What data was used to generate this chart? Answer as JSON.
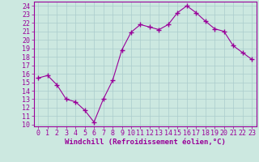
{
  "x": [
    0,
    1,
    2,
    3,
    4,
    5,
    6,
    7,
    8,
    9,
    10,
    11,
    12,
    13,
    14,
    15,
    16,
    17,
    18,
    19,
    20,
    21,
    22,
    23
  ],
  "y": [
    15.5,
    15.8,
    14.7,
    13.0,
    12.7,
    11.7,
    10.3,
    13.0,
    15.2,
    18.8,
    20.9,
    21.8,
    21.5,
    21.2,
    21.8,
    23.2,
    24.0,
    23.2,
    22.2,
    21.3,
    21.0,
    19.3,
    18.5,
    17.7
  ],
  "line_color": "#990099",
  "marker": "+",
  "marker_size": 4,
  "bg_color": "#cce8e0",
  "grid_color": "#aacccc",
  "xlabel": "Windchill (Refroidissement éolien,°C)",
  "ylabel_ticks": [
    10,
    11,
    12,
    13,
    14,
    15,
    16,
    17,
    18,
    19,
    20,
    21,
    22,
    23,
    24
  ],
  "xtick_labels": [
    "0",
    "1",
    "2",
    "3",
    "4",
    "5",
    "6",
    "7",
    "8",
    "9",
    "10",
    "11",
    "12",
    "13",
    "14",
    "15",
    "16",
    "17",
    "18",
    "19",
    "20",
    "21",
    "22",
    "23"
  ],
  "ylim": [
    9.8,
    24.5
  ],
  "xlim": [
    -0.5,
    23.5
  ],
  "label_fontsize": 6.5,
  "tick_fontsize": 6.0
}
